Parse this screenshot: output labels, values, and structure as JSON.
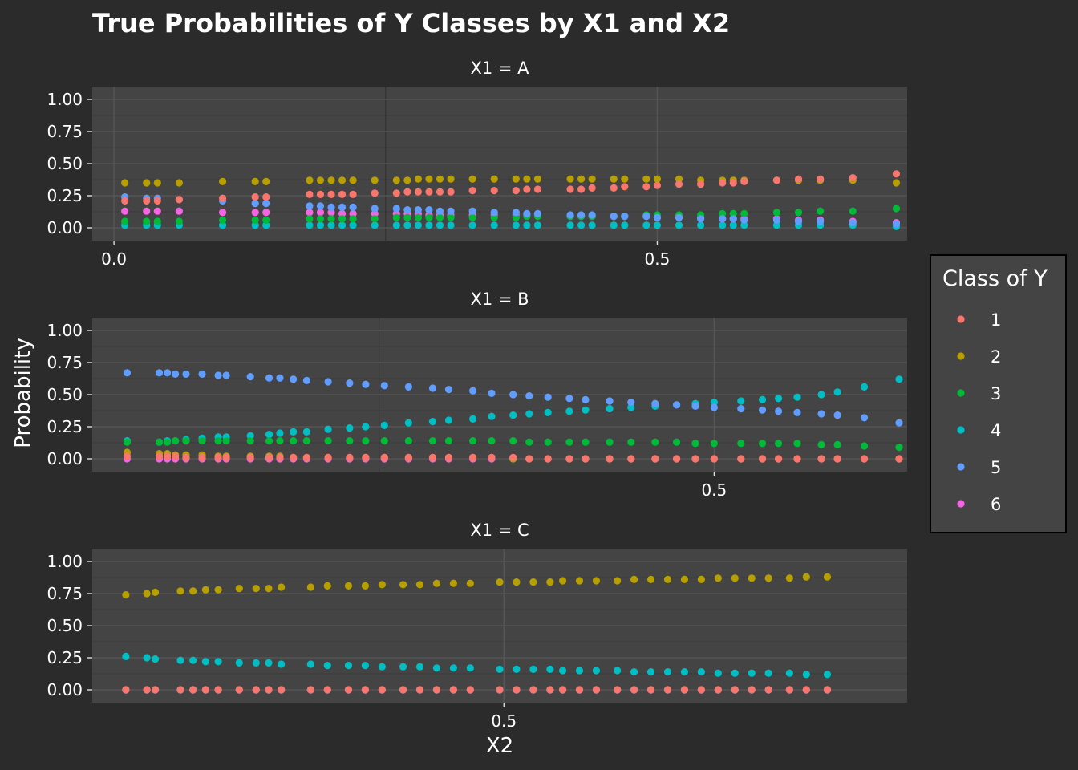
{
  "chart_data": {
    "type": "scatter",
    "title": "True Probabilities of Y Classes by X1 and X2",
    "xlabel": "X2",
    "ylabel": "Probability",
    "legend_title": "Class of Y",
    "legend_position": "right",
    "ylim": [
      -0.1,
      1.1
    ],
    "y_ticks": [
      1.0,
      0.75,
      0.5,
      0.25,
      0.0
    ],
    "y_tick_labels": [
      "1.00",
      "0.75",
      "0.50",
      "0.25",
      "0.00"
    ],
    "grid": true,
    "colors": {
      "1": "#f8766d",
      "2": "#b79f00",
      "3": "#00ba38",
      "4": "#00bfc4",
      "5": "#619cff",
      "6": "#f564e3"
    },
    "series": [
      {
        "name": "1"
      },
      {
        "name": "2"
      },
      {
        "name": "3"
      },
      {
        "name": "4"
      },
      {
        "name": "5"
      },
      {
        "name": "6"
      }
    ],
    "panels": [
      {
        "strip": "X1 = A",
        "xlim": [
          -0.02,
          0.73
        ],
        "x_ticks": [
          0.0,
          0.5
        ],
        "x_tick_labels": [
          "0.0",
          "0.5"
        ],
        "x": [
          0.01,
          0.03,
          0.04,
          0.06,
          0.1,
          0.13,
          0.14,
          0.18,
          0.19,
          0.2,
          0.21,
          0.22,
          0.24,
          0.26,
          0.27,
          0.28,
          0.29,
          0.3,
          0.31,
          0.33,
          0.35,
          0.37,
          0.38,
          0.39,
          0.42,
          0.43,
          0.44,
          0.46,
          0.47,
          0.49,
          0.5,
          0.52,
          0.54,
          0.56,
          0.57,
          0.58,
          0.61,
          0.63,
          0.65,
          0.68,
          0.72
        ],
        "values": {
          "1": [
            0.21,
            0.21,
            0.21,
            0.22,
            0.23,
            0.24,
            0.24,
            0.26,
            0.26,
            0.26,
            0.26,
            0.26,
            0.27,
            0.27,
            0.28,
            0.28,
            0.28,
            0.28,
            0.28,
            0.29,
            0.29,
            0.29,
            0.3,
            0.3,
            0.3,
            0.3,
            0.31,
            0.31,
            0.32,
            0.32,
            0.33,
            0.34,
            0.34,
            0.35,
            0.35,
            0.36,
            0.37,
            0.38,
            0.38,
            0.39,
            0.42
          ],
          "2": [
            0.35,
            0.35,
            0.35,
            0.35,
            0.36,
            0.36,
            0.36,
            0.37,
            0.37,
            0.37,
            0.37,
            0.37,
            0.37,
            0.37,
            0.37,
            0.38,
            0.38,
            0.38,
            0.38,
            0.38,
            0.38,
            0.38,
            0.38,
            0.38,
            0.38,
            0.38,
            0.38,
            0.38,
            0.38,
            0.38,
            0.38,
            0.38,
            0.37,
            0.37,
            0.37,
            0.37,
            0.37,
            0.37,
            0.37,
            0.37,
            0.35
          ],
          "3": [
            0.05,
            0.05,
            0.05,
            0.05,
            0.06,
            0.06,
            0.06,
            0.07,
            0.07,
            0.07,
            0.07,
            0.07,
            0.07,
            0.08,
            0.08,
            0.08,
            0.08,
            0.08,
            0.08,
            0.08,
            0.08,
            0.08,
            0.09,
            0.09,
            0.09,
            0.09,
            0.09,
            0.09,
            0.09,
            0.1,
            0.1,
            0.1,
            0.1,
            0.11,
            0.11,
            0.11,
            0.12,
            0.12,
            0.13,
            0.13,
            0.15
          ],
          "4": [
            0.02,
            0.02,
            0.02,
            0.02,
            0.02,
            0.02,
            0.02,
            0.02,
            0.02,
            0.02,
            0.02,
            0.02,
            0.02,
            0.02,
            0.02,
            0.02,
            0.02,
            0.02,
            0.02,
            0.02,
            0.02,
            0.02,
            0.02,
            0.02,
            0.02,
            0.02,
            0.02,
            0.02,
            0.02,
            0.02,
            0.02,
            0.02,
            0.02,
            0.02,
            0.02,
            0.02,
            0.02,
            0.02,
            0.02,
            0.02,
            0.01
          ],
          "5": [
            0.24,
            0.23,
            0.23,
            0.22,
            0.21,
            0.19,
            0.19,
            0.17,
            0.17,
            0.16,
            0.16,
            0.16,
            0.15,
            0.15,
            0.14,
            0.14,
            0.14,
            0.13,
            0.13,
            0.13,
            0.12,
            0.12,
            0.11,
            0.11,
            0.1,
            0.1,
            0.1,
            0.09,
            0.09,
            0.09,
            0.08,
            0.08,
            0.07,
            0.07,
            0.07,
            0.06,
            0.06,
            0.05,
            0.05,
            0.04,
            0.03
          ],
          "6": [
            0.13,
            0.13,
            0.13,
            0.13,
            0.12,
            0.12,
            0.12,
            0.12,
            0.12,
            0.12,
            0.11,
            0.11,
            0.11,
            0.11,
            0.11,
            0.11,
            0.1,
            0.1,
            0.1,
            0.1,
            0.1,
            0.1,
            0.1,
            0.1,
            0.09,
            0.09,
            0.09,
            0.09,
            0.09,
            0.09,
            0.08,
            0.08,
            0.08,
            0.07,
            0.07,
            0.07,
            0.07,
            0.06,
            0.06,
            0.05,
            0.04
          ]
        }
      },
      {
        "strip": "X1 = B",
        "xlim": [
          0.268,
          0.572
        ],
        "x_ticks": [
          0.5
        ],
        "x_tick_labels": [
          "0.5"
        ],
        "x": [
          0.281,
          0.293,
          0.296,
          0.299,
          0.303,
          0.309,
          0.315,
          0.318,
          0.327,
          0.334,
          0.338,
          0.343,
          0.348,
          0.356,
          0.364,
          0.37,
          0.377,
          0.386,
          0.395,
          0.401,
          0.41,
          0.417,
          0.425,
          0.431,
          0.438,
          0.446,
          0.452,
          0.461,
          0.469,
          0.478,
          0.486,
          0.493,
          0.5,
          0.51,
          0.518,
          0.524,
          0.531,
          0.54,
          0.546,
          0.556,
          0.569
        ],
        "values": {
          "1": [
            0.02,
            0.02,
            0.02,
            0.02,
            0.01,
            0.01,
            0.01,
            0.01,
            0.01,
            0.01,
            0.01,
            0.01,
            0.01,
            0.01,
            0.01,
            0.01,
            0.01,
            0.01,
            0.01,
            0.01,
            0.01,
            0.01,
            0.01,
            0.0,
            0.0,
            0.0,
            0.0,
            0.0,
            0.0,
            0.0,
            0.0,
            0.0,
            0.0,
            0.0,
            0.0,
            0.0,
            0.0,
            0.0,
            0.0,
            0.0,
            0.0
          ],
          "2": [
            0.05,
            0.04,
            0.04,
            0.03,
            0.03,
            0.03,
            0.02,
            0.02,
            0.02,
            0.02,
            0.02,
            0.01,
            0.01,
            0.01,
            0.01,
            0.01,
            0.01,
            0.01,
            0.01,
            0.01,
            0.01,
            0.01,
            0.0,
            0.0,
            0.0,
            0.0,
            0.0,
            0.0,
            0.0,
            0.0,
            0.0,
            0.0,
            0.0,
            0.0,
            0.0,
            0.0,
            0.0,
            0.0,
            0.0,
            0.0,
            0.0
          ],
          "3": [
            0.13,
            0.13,
            0.13,
            0.14,
            0.14,
            0.14,
            0.14,
            0.14,
            0.14,
            0.14,
            0.14,
            0.14,
            0.14,
            0.14,
            0.14,
            0.14,
            0.14,
            0.14,
            0.14,
            0.14,
            0.14,
            0.14,
            0.14,
            0.13,
            0.13,
            0.13,
            0.13,
            0.13,
            0.13,
            0.13,
            0.13,
            0.12,
            0.12,
            0.12,
            0.12,
            0.12,
            0.12,
            0.11,
            0.11,
            0.1,
            0.09
          ],
          "4": [
            0.14,
            0.13,
            0.14,
            0.14,
            0.15,
            0.16,
            0.17,
            0.17,
            0.18,
            0.19,
            0.2,
            0.21,
            0.21,
            0.23,
            0.24,
            0.25,
            0.26,
            0.28,
            0.29,
            0.3,
            0.31,
            0.33,
            0.34,
            0.35,
            0.36,
            0.37,
            0.38,
            0.39,
            0.4,
            0.41,
            0.42,
            0.43,
            0.44,
            0.45,
            0.46,
            0.47,
            0.48,
            0.5,
            0.52,
            0.56,
            0.62
          ],
          "5": [
            0.67,
            0.67,
            0.67,
            0.66,
            0.66,
            0.66,
            0.65,
            0.65,
            0.64,
            0.63,
            0.63,
            0.62,
            0.61,
            0.6,
            0.59,
            0.58,
            0.57,
            0.56,
            0.55,
            0.54,
            0.53,
            0.51,
            0.5,
            0.49,
            0.48,
            0.47,
            0.46,
            0.45,
            0.44,
            0.43,
            0.42,
            0.41,
            0.4,
            0.39,
            0.38,
            0.37,
            0.36,
            0.35,
            0.34,
            0.32,
            0.28
          ],
          "6": [
            0.0,
            0.0,
            0.0,
            0.0,
            0.0,
            0.0,
            0.0,
            0.0,
            0.0,
            0.0,
            0.0,
            0.0,
            0.0,
            0.0,
            0.0,
            0.0,
            0.0,
            0.0,
            0.0,
            0.0,
            0.0,
            0.0,
            0.0,
            0.0,
            0.0,
            0.0,
            0.0,
            0.0,
            0.0,
            0.0,
            0.0,
            0.0,
            0.0,
            0.0,
            0.0,
            0.0,
            0.0,
            0.0,
            0.0,
            0.0,
            0.0
          ]
        }
      },
      {
        "strip": "X1 = C",
        "xlim": [
          0.402,
          0.596
        ],
        "x_ticks": [
          0.5
        ],
        "x_tick_labels": [
          "0.5"
        ],
        "x": [
          0.41,
          0.415,
          0.417,
          0.423,
          0.426,
          0.429,
          0.432,
          0.437,
          0.441,
          0.444,
          0.447,
          0.454,
          0.458,
          0.463,
          0.467,
          0.471,
          0.476,
          0.48,
          0.484,
          0.488,
          0.492,
          0.499,
          0.503,
          0.507,
          0.511,
          0.514,
          0.518,
          0.522,
          0.527,
          0.531,
          0.535,
          0.539,
          0.543,
          0.547,
          0.551,
          0.555,
          0.559,
          0.563,
          0.568,
          0.572,
          0.577
        ],
        "values": {
          "1": [
            0.0,
            0.0,
            0.0,
            0.0,
            0.0,
            0.0,
            0.0,
            0.0,
            0.0,
            0.0,
            0.0,
            0.0,
            0.0,
            0.0,
            0.0,
            0.0,
            0.0,
            0.0,
            0.0,
            0.0,
            0.0,
            0.0,
            0.0,
            0.0,
            0.0,
            0.0,
            0.0,
            0.0,
            0.0,
            0.0,
            0.0,
            0.0,
            0.0,
            0.0,
            0.0,
            0.0,
            0.0,
            0.0,
            0.0,
            0.0,
            0.0
          ],
          "2": [
            0.74,
            0.75,
            0.76,
            0.77,
            0.77,
            0.78,
            0.78,
            0.79,
            0.79,
            0.79,
            0.8,
            0.8,
            0.81,
            0.81,
            0.81,
            0.82,
            0.82,
            0.82,
            0.83,
            0.83,
            0.83,
            0.84,
            0.84,
            0.84,
            0.84,
            0.85,
            0.85,
            0.85,
            0.85,
            0.86,
            0.86,
            0.86,
            0.86,
            0.86,
            0.87,
            0.87,
            0.87,
            0.87,
            0.87,
            0.88,
            0.88
          ],
          "3": [
            0.0,
            0.0,
            0.0,
            0.0,
            0.0,
            0.0,
            0.0,
            0.0,
            0.0,
            0.0,
            0.0,
            0.0,
            0.0,
            0.0,
            0.0,
            0.0,
            0.0,
            0.0,
            0.0,
            0.0,
            0.0,
            0.0,
            0.0,
            0.0,
            0.0,
            0.0,
            0.0,
            0.0,
            0.0,
            0.0,
            0.0,
            0.0,
            0.0,
            0.0,
            0.0,
            0.0,
            0.0,
            0.0,
            0.0,
            0.0,
            0.0
          ],
          "4": [
            0.26,
            0.25,
            0.24,
            0.23,
            0.23,
            0.22,
            0.22,
            0.21,
            0.21,
            0.21,
            0.2,
            0.2,
            0.19,
            0.19,
            0.19,
            0.18,
            0.18,
            0.18,
            0.17,
            0.17,
            0.17,
            0.16,
            0.16,
            0.16,
            0.16,
            0.15,
            0.15,
            0.15,
            0.15,
            0.14,
            0.14,
            0.14,
            0.14,
            0.14,
            0.13,
            0.13,
            0.13,
            0.13,
            0.13,
            0.12,
            0.12
          ],
          "5": [
            0.0,
            0.0,
            0.0,
            0.0,
            0.0,
            0.0,
            0.0,
            0.0,
            0.0,
            0.0,
            0.0,
            0.0,
            0.0,
            0.0,
            0.0,
            0.0,
            0.0,
            0.0,
            0.0,
            0.0,
            0.0,
            0.0,
            0.0,
            0.0,
            0.0,
            0.0,
            0.0,
            0.0,
            0.0,
            0.0,
            0.0,
            0.0,
            0.0,
            0.0,
            0.0,
            0.0,
            0.0,
            0.0,
            0.0,
            0.0,
            0.0
          ],
          "6": [
            0.0,
            0.0,
            0.0,
            0.0,
            0.0,
            0.0,
            0.0,
            0.0,
            0.0,
            0.0,
            0.0,
            0.0,
            0.0,
            0.0,
            0.0,
            0.0,
            0.0,
            0.0,
            0.0,
            0.0,
            0.0,
            0.0,
            0.0,
            0.0,
            0.0,
            0.0,
            0.0,
            0.0,
            0.0,
            0.0,
            0.0,
            0.0,
            0.0,
            0.0,
            0.0,
            0.0,
            0.0,
            0.0,
            0.0,
            0.0,
            0.0
          ]
        }
      }
    ]
  }
}
